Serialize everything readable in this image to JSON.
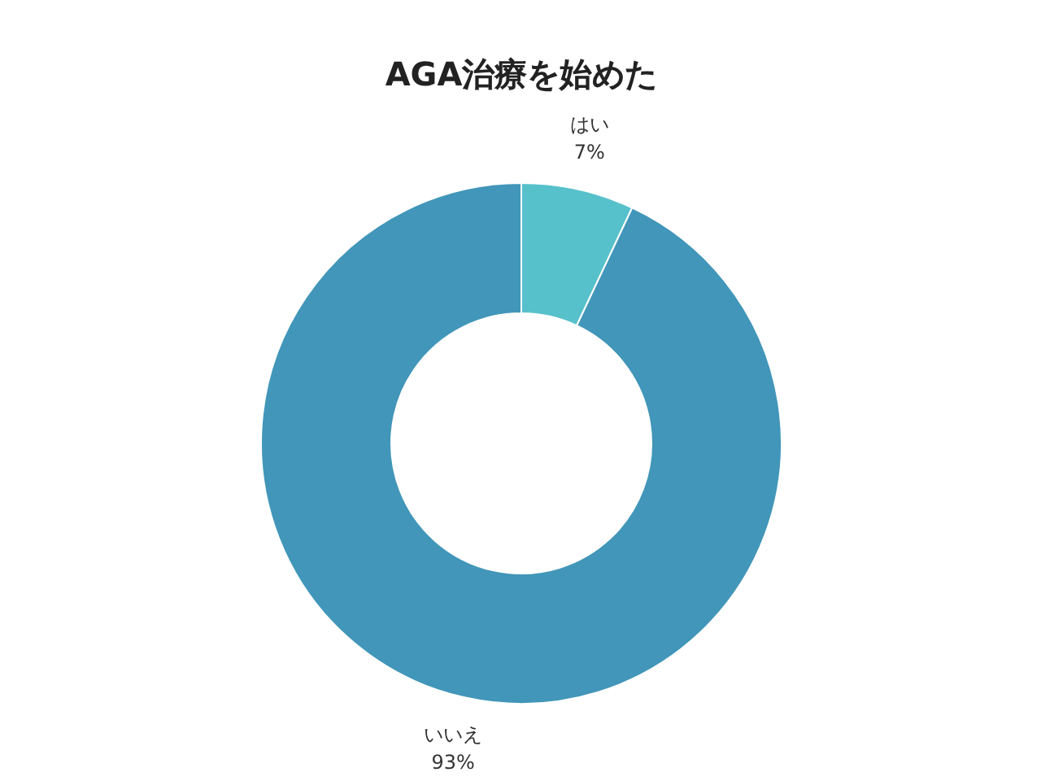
{
  "chart_data": {
    "type": "donut",
    "title": "AGA治療を始めた",
    "categories": [
      "はい",
      "いいえ"
    ],
    "values": [
      7,
      93
    ],
    "value_labels": [
      "7%",
      "93%"
    ],
    "colors": [
      "#56c1cb",
      "#4196b9"
    ]
  }
}
